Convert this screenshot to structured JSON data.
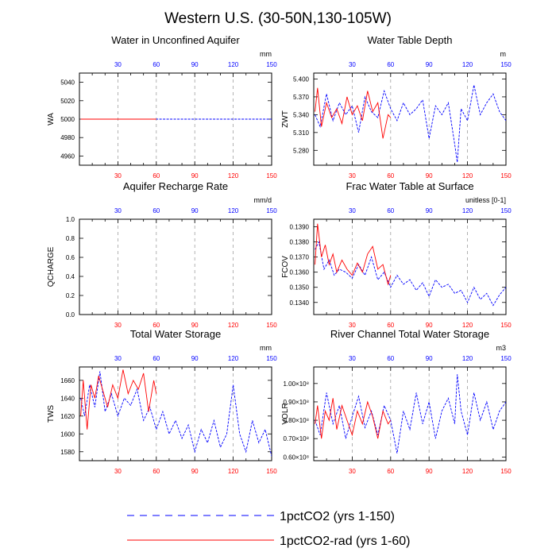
{
  "title": "Western U.S. (30-50N,130-105W)",
  "colors": {
    "red": "#ff0000",
    "blue": "#0000ff",
    "grid": "#a0a0a0"
  },
  "legend": {
    "entries": [
      {
        "label": "1pctCO2 (yrs 1-150)",
        "color": "#0000ff",
        "style": "dashed"
      },
      {
        "label": "1pctCO2-rad (yrs 1-60)",
        "color": "#ff0000",
        "style": "solid"
      }
    ]
  },
  "chart_data": [
    {
      "type": "line",
      "title": "Water in Unconfined Aquifer",
      "ylabel": "WA",
      "units": "mm",
      "xlim": [
        0,
        150
      ],
      "ylim": [
        4950,
        5050
      ],
      "yticks": [
        "4960",
        "4980",
        "5000",
        "5020",
        "5040"
      ],
      "top_xticks": [
        "30",
        "60",
        "90",
        "120",
        "150"
      ],
      "bottom_xticks": [
        "30",
        "60",
        "90",
        "120",
        "150"
      ],
      "series": [
        {
          "name": "1pctCO2 (yrs 1-150)",
          "x": [
            1,
            150
          ],
          "y": [
            5000,
            5000
          ]
        },
        {
          "name": "1pctCO2-rad (yrs 1-60)",
          "x": [
            1,
            60
          ],
          "y": [
            5000,
            5000
          ]
        }
      ]
    },
    {
      "type": "line",
      "title": "Water Table Depth",
      "ylabel": "ZWT",
      "units": "m",
      "xlim": [
        0,
        150
      ],
      "ylim": [
        5.255,
        5.41
      ],
      "yticks": [
        "5.280",
        "5.310",
        "5.340",
        "5.370",
        "5.400"
      ],
      "top_xticks": [
        "30",
        "60",
        "90",
        "120",
        "150"
      ],
      "bottom_xticks": [
        "30",
        "60",
        "90",
        "120",
        "150"
      ],
      "series": [
        {
          "name": "1pctCO2 (yrs 1-150)",
          "x": [
            1,
            5,
            10,
            15,
            20,
            25,
            30,
            35,
            40,
            45,
            50,
            55,
            60,
            65,
            70,
            75,
            80,
            85,
            90,
            95,
            100,
            105,
            110,
            112,
            115,
            120,
            125,
            130,
            135,
            140,
            145,
            150
          ],
          "y": [
            5.34,
            5.32,
            5.375,
            5.33,
            5.36,
            5.34,
            5.355,
            5.31,
            5.37,
            5.345,
            5.335,
            5.38,
            5.35,
            5.33,
            5.36,
            5.34,
            5.35,
            5.365,
            5.3,
            5.355,
            5.34,
            5.36,
            5.29,
            5.26,
            5.35,
            5.33,
            5.39,
            5.34,
            5.36,
            5.375,
            5.345,
            5.33
          ]
        },
        {
          "name": "1pctCO2-rad (yrs 1-60)",
          "x": [
            1,
            3,
            6,
            10,
            14,
            18,
            22,
            26,
            30,
            34,
            38,
            42,
            46,
            50,
            54,
            58,
            60
          ],
          "y": [
            5.345,
            5.385,
            5.32,
            5.36,
            5.335,
            5.35,
            5.325,
            5.37,
            5.34,
            5.355,
            5.33,
            5.38,
            5.345,
            5.36,
            5.3,
            5.34,
            5.335
          ]
        }
      ]
    },
    {
      "type": "line",
      "title": "Aquifer Recharge Rate",
      "ylabel": "QCHARGE",
      "units": "mm/d",
      "xlim": [
        0,
        150
      ],
      "ylim": [
        0.0,
        1.0
      ],
      "yticks": [
        "0.0",
        "0.2",
        "0.4",
        "0.6",
        "0.8",
        "1.0"
      ],
      "top_xticks": [
        "30",
        "60",
        "90",
        "120",
        "150"
      ],
      "bottom_xticks": [
        "30",
        "60",
        "90",
        "120",
        "150"
      ],
      "series": []
    },
    {
      "type": "line",
      "title": "Frac Water Table at Surface",
      "ylabel": "FCOV",
      "units": "unitless [0-1]",
      "xlim": [
        0,
        150
      ],
      "ylim": [
        0.1332,
        0.1395
      ],
      "yticks": [
        "0.1340",
        "0.1350",
        "0.1360",
        "0.1370",
        "0.1380",
        "0.1390"
      ],
      "top_xticks": [
        "30",
        "60",
        "90",
        "120",
        "150"
      ],
      "bottom_xticks": [
        "30",
        "60",
        "90",
        "120",
        "150"
      ],
      "series": [
        {
          "name": "1pctCO2 (yrs 1-150)",
          "x": [
            1,
            4,
            8,
            12,
            16,
            20,
            25,
            30,
            35,
            40,
            45,
            50,
            55,
            60,
            65,
            70,
            75,
            80,
            85,
            90,
            95,
            100,
            105,
            110,
            115,
            120,
            125,
            130,
            135,
            140,
            145,
            150
          ],
          "y": [
            0.1375,
            0.138,
            0.1362,
            0.1368,
            0.1358,
            0.1362,
            0.136,
            0.1356,
            0.1365,
            0.1358,
            0.137,
            0.1355,
            0.136,
            0.135,
            0.1358,
            0.1352,
            0.1355,
            0.1348,
            0.1353,
            0.1344,
            0.1355,
            0.135,
            0.1352,
            0.1346,
            0.1348,
            0.134,
            0.135,
            0.1342,
            0.1346,
            0.1338,
            0.1345,
            0.135
          ]
        },
        {
          "name": "1pctCO2-rad (yrs 1-60)",
          "x": [
            1,
            3,
            6,
            9,
            12,
            15,
            18,
            22,
            26,
            30,
            34,
            38,
            42,
            46,
            50,
            54,
            58,
            60
          ],
          "y": [
            0.1365,
            0.1392,
            0.137,
            0.1378,
            0.1365,
            0.1372,
            0.136,
            0.1368,
            0.1362,
            0.1358,
            0.1366,
            0.136,
            0.1372,
            0.1377,
            0.1362,
            0.1365,
            0.1352,
            0.1358
          ]
        }
      ]
    },
    {
      "type": "line",
      "title": "Total Water Storage",
      "ylabel": "TWS",
      "units": "mm",
      "xlim": [
        0,
        150
      ],
      "ylim": [
        1570,
        1675
      ],
      "yticks": [
        "1580",
        "1600",
        "1620",
        "1640",
        "1660"
      ],
      "top_xticks": [
        "30",
        "60",
        "90",
        "120",
        "150"
      ],
      "bottom_xticks": [
        "30",
        "60",
        "90",
        "120",
        "150"
      ],
      "series": [
        {
          "name": "1pctCO2 (yrs 1-150)",
          "x": [
            1,
            4,
            8,
            12,
            16,
            20,
            25,
            30,
            35,
            40,
            45,
            50,
            55,
            60,
            65,
            70,
            75,
            80,
            85,
            90,
            95,
            100,
            105,
            110,
            115,
            120,
            125,
            130,
            135,
            140,
            145,
            150
          ],
          "y": [
            1640,
            1620,
            1655,
            1630,
            1670,
            1625,
            1645,
            1620,
            1640,
            1632,
            1650,
            1615,
            1630,
            1605,
            1625,
            1600,
            1615,
            1595,
            1610,
            1580,
            1605,
            1590,
            1615,
            1585,
            1600,
            1655,
            1600,
            1580,
            1615,
            1590,
            1605,
            1575
          ]
        },
        {
          "name": "1pctCO2-rad (yrs 1-60)",
          "x": [
            1,
            3,
            6,
            9,
            12,
            15,
            18,
            22,
            26,
            30,
            34,
            38,
            42,
            46,
            50,
            54,
            58,
            60
          ],
          "y": [
            1620,
            1660,
            1605,
            1655,
            1640,
            1665,
            1650,
            1630,
            1655,
            1640,
            1672,
            1645,
            1660,
            1650,
            1668,
            1625,
            1660,
            1645
          ]
        }
      ]
    },
    {
      "type": "line",
      "title": "River Channel Total Water Storage",
      "ylabel": "VOLR",
      "units": "m3",
      "xlim": [
        0,
        150
      ],
      "ylim": [
        0.58,
        1.09
      ],
      "yticks": [
        "0.60×10⁸",
        "0.70×10⁸",
        "0.80×10⁸",
        "0.90×10⁸",
        "1.00×10⁸"
      ],
      "top_xticks": [
        "30",
        "60",
        "90",
        "120",
        "150"
      ],
      "bottom_xticks": [
        "30",
        "60",
        "90",
        "120",
        "150"
      ],
      "series": [
        {
          "name": "1pctCO2 (yrs 1-150)",
          "x": [
            1,
            5,
            10,
            15,
            20,
            25,
            30,
            35,
            40,
            45,
            50,
            55,
            60,
            65,
            70,
            75,
            80,
            85,
            90,
            95,
            100,
            105,
            110,
            112,
            115,
            120,
            125,
            130,
            135,
            140,
            145,
            150
          ],
          "y": [
            0.8,
            0.72,
            0.95,
            0.78,
            0.88,
            0.7,
            0.82,
            0.93,
            0.76,
            0.85,
            0.72,
            0.88,
            0.8,
            0.62,
            0.85,
            0.75,
            0.95,
            0.78,
            0.9,
            0.7,
            0.85,
            0.92,
            0.78,
            1.05,
            0.85,
            0.72,
            0.95,
            0.8,
            0.9,
            0.75,
            0.85,
            0.9
          ]
        },
        {
          "name": "1pctCO2-rad (yrs 1-60)",
          "x": [
            1,
            3,
            6,
            9,
            12,
            15,
            18,
            22,
            26,
            30,
            34,
            38,
            42,
            46,
            50,
            54,
            58,
            60
          ],
          "y": [
            0.78,
            0.88,
            0.7,
            0.85,
            0.8,
            0.92,
            0.75,
            0.88,
            0.8,
            0.72,
            0.85,
            0.78,
            0.9,
            0.82,
            0.7,
            0.85,
            0.78,
            0.8
          ]
        }
      ]
    }
  ]
}
